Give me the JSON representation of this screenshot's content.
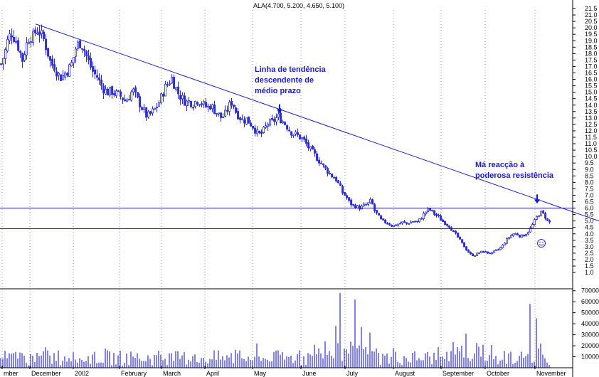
{
  "chart_data": {
    "type": "candlestick",
    "title": "ALA(4.700, 5.200, 4.650, 5.100)",
    "price_axis": {
      "min": 1.0,
      "max": 21.5,
      "ticks": [
        "21.5",
        "21.0",
        "20.5",
        "20.0",
        "19.5",
        "19.0",
        "18.5",
        "18.0",
        "17.5",
        "17.0",
        "16.5",
        "16.0",
        "15.5",
        "15.0",
        "14.5",
        "14.0",
        "13.5",
        "13.0",
        "12.5",
        "12.0",
        "11.5",
        "11.0",
        "10.5",
        "10.0",
        "9.5",
        "9.0",
        "8.5",
        "8.0",
        "7.5",
        "7.0",
        "6.5",
        "6.0",
        "5.5",
        "5.0",
        "4.5",
        "4.0",
        "3.5",
        "3.0",
        "2.5",
        "2.0",
        "1.5",
        "1.0"
      ]
    },
    "volume_axis": {
      "min": 0,
      "max": 75000,
      "ticks": [
        "70000",
        "60000",
        "50000",
        "40000",
        "30000",
        "20000",
        "10000"
      ]
    },
    "months": [
      "mber",
      "December",
      "2002",
      "February",
      "March",
      "April",
      "May",
      "June",
      "July",
      "August",
      "September",
      "October",
      "November"
    ],
    "price_path": [
      [
        0,
        17.2
      ],
      [
        5,
        18.0
      ],
      [
        10,
        19.2
      ],
      [
        15,
        19.6
      ],
      [
        20,
        19.1
      ],
      [
        25,
        18.4
      ],
      [
        30,
        17.5
      ],
      [
        35,
        18.6
      ],
      [
        40,
        19.4
      ],
      [
        45,
        19.3
      ],
      [
        50,
        19.9
      ],
      [
        55,
        19.6
      ],
      [
        60,
        19.1
      ],
      [
        65,
        18.2
      ],
      [
        70,
        17.2
      ],
      [
        75,
        17.0
      ],
      [
        80,
        16.4
      ],
      [
        85,
        16.1
      ],
      [
        90,
        16.5
      ],
      [
        95,
        16.8
      ],
      [
        100,
        17.3
      ],
      [
        105,
        18.4
      ],
      [
        110,
        18.9
      ],
      [
        115,
        18.6
      ],
      [
        120,
        17.8
      ],
      [
        125,
        17.1
      ],
      [
        130,
        16.5
      ],
      [
        135,
        16.2
      ],
      [
        140,
        15.6
      ],
      [
        145,
        15.2
      ],
      [
        150,
        15.0
      ],
      [
        155,
        15.1
      ],
      [
        160,
        14.9
      ],
      [
        165,
        14.8
      ],
      [
        170,
        14.6
      ],
      [
        175,
        14.3
      ],
      [
        180,
        14.7
      ],
      [
        185,
        15.2
      ],
      [
        190,
        14.6
      ],
      [
        195,
        14.1
      ],
      [
        200,
        13.6
      ],
      [
        205,
        13.1
      ],
      [
        210,
        13.3
      ],
      [
        215,
        13.6
      ],
      [
        220,
        14.0
      ],
      [
        225,
        14.6
      ],
      [
        230,
        15.3
      ],
      [
        235,
        15.7
      ],
      [
        240,
        16.1
      ],
      [
        245,
        15.4
      ],
      [
        250,
        14.8
      ],
      [
        255,
        14.5
      ],
      [
        260,
        14.2
      ],
      [
        265,
        14.3
      ],
      [
        270,
        14.1
      ],
      [
        275,
        14.4
      ],
      [
        280,
        14.3
      ],
      [
        285,
        14.0
      ],
      [
        290,
        13.8
      ],
      [
        295,
        14.0
      ],
      [
        300,
        13.6
      ],
      [
        305,
        13.3
      ],
      [
        310,
        13.0
      ],
      [
        315,
        13.3
      ],
      [
        320,
        13.9
      ],
      [
        325,
        14.3
      ],
      [
        330,
        13.5
      ],
      [
        335,
        13.1
      ],
      [
        340,
        12.8
      ],
      [
        345,
        12.9
      ],
      [
        350,
        12.6
      ],
      [
        355,
        12.3
      ],
      [
        360,
        11.8
      ],
      [
        365,
        11.7
      ],
      [
        370,
        12.1
      ],
      [
        375,
        12.6
      ],
      [
        380,
        12.6
      ],
      [
        385,
        12.9
      ],
      [
        390,
        13.1
      ],
      [
        395,
        12.8
      ],
      [
        400,
        12.5
      ],
      [
        405,
        12.1
      ],
      [
        410,
        11.8
      ],
      [
        415,
        11.7
      ],
      [
        420,
        11.5
      ],
      [
        425,
        11.3
      ],
      [
        430,
        10.9
      ],
      [
        435,
        10.5
      ],
      [
        440,
        10.2
      ],
      [
        445,
        9.8
      ],
      [
        450,
        9.5
      ],
      [
        455,
        9.1
      ],
      [
        460,
        8.8
      ],
      [
        465,
        8.5
      ],
      [
        470,
        8.3
      ],
      [
        475,
        7.8
      ],
      [
        480,
        7.2
      ],
      [
        485,
        6.9
      ],
      [
        490,
        6.4
      ],
      [
        495,
        6.2
      ],
      [
        500,
        6.1
      ],
      [
        505,
        6.0
      ],
      [
        510,
        6.2
      ],
      [
        515,
        6.3
      ],
      [
        520,
        6.6
      ],
      [
        525,
        5.8
      ],
      [
        530,
        5.4
      ],
      [
        535,
        5.0
      ],
      [
        540,
        4.9
      ],
      [
        545,
        4.8
      ],
      [
        550,
        4.6
      ],
      [
        555,
        4.7
      ],
      [
        560,
        4.8
      ],
      [
        565,
        4.9
      ],
      [
        570,
        4.8
      ],
      [
        575,
        4.9
      ],
      [
        580,
        5.0
      ],
      [
        585,
        4.9
      ],
      [
        590,
        5.2
      ],
      [
        595,
        5.6
      ],
      [
        600,
        5.9
      ],
      [
        605,
        5.8
      ],
      [
        610,
        5.5
      ],
      [
        615,
        5.3
      ],
      [
        620,
        5.0
      ],
      [
        625,
        4.8
      ],
      [
        630,
        4.6
      ],
      [
        635,
        4.2
      ],
      [
        640,
        3.9
      ],
      [
        645,
        3.5
      ],
      [
        650,
        3.1
      ],
      [
        655,
        2.7
      ],
      [
        660,
        2.4
      ],
      [
        665,
        2.3
      ],
      [
        670,
        2.5
      ],
      [
        675,
        2.6
      ],
      [
        680,
        2.6
      ],
      [
        685,
        2.5
      ],
      [
        690,
        2.5
      ],
      [
        695,
        2.7
      ],
      [
        700,
        2.8
      ],
      [
        705,
        3.1
      ],
      [
        710,
        3.5
      ],
      [
        715,
        3.8
      ],
      [
        720,
        4.0
      ],
      [
        725,
        4.0
      ],
      [
        730,
        3.8
      ],
      [
        735,
        3.9
      ],
      [
        740,
        4.1
      ],
      [
        745,
        4.5
      ],
      [
        750,
        5.0
      ],
      [
        755,
        5.5
      ],
      [
        760,
        5.7
      ],
      [
        765,
        5.3
      ],
      [
        770,
        4.8
      ],
      [
        773,
        5.1
      ]
    ],
    "volume_peaks": [
      [
        478,
        68000
      ],
      [
        498,
        62000
      ],
      [
        745,
        58000
      ],
      [
        755,
        45000
      ],
      [
        472,
        38000
      ],
      [
        508,
        37000
      ],
      [
        520,
        32000
      ],
      [
        655,
        31000
      ]
    ],
    "trendline": {
      "from": [
        50,
        20.3
      ],
      "to": [
        842,
        5.0
      ]
    },
    "horizontal_lines": [
      6.0,
      4.4
    ],
    "annotations": [
      {
        "lines": [
          "Linha de tendência",
          "descendente de",
          "médio prazo"
        ],
        "arrow_x": 393,
        "arrow_price": 13.4
      },
      {
        "lines": [
          "Má reacção à",
          "poderosa resistência"
        ],
        "arrow_x": 755,
        "arrow_price": 6.4
      }
    ],
    "colors": {
      "candles": "#2d2dd8",
      "trendline": "#2020c8",
      "annotation_text": "#1a1ad0",
      "grid": "#9a9aa8"
    }
  }
}
